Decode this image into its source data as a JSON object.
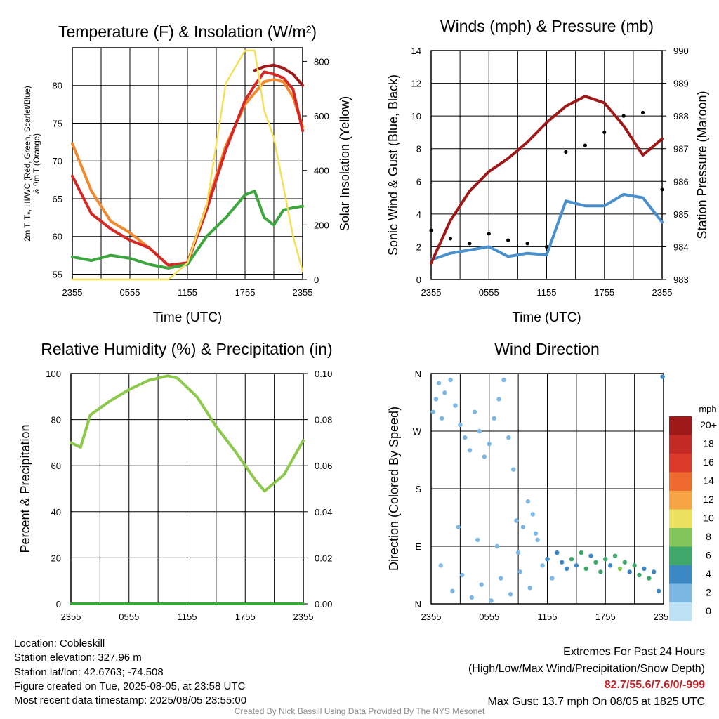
{
  "chart_data": [
    {
      "type": "line",
      "title": "Temperature (F) & Insolation (W/m²)",
      "xlabel": "Time (UTC)",
      "ylabel": "2m T, Td, HI/WC (Red, Green, Scarlet/Blue) & 9m T (Orange)",
      "ylabel_lines": [
        "2m T, Tₙ, HI/WC (Red, Green, Scarlet/Blue)",
        "& 9m T (Orange)"
      ],
      "y2label": "Solar Insolation (Yellow)",
      "x_ticks": [
        "2355",
        "0555",
        "1155",
        "1755",
        "2355"
      ],
      "ylim": [
        54.3,
        85.0
      ],
      "y_ticks": [
        55,
        60,
        65,
        70,
        75,
        80
      ],
      "y2lim": [
        0,
        850
      ],
      "y2_ticks": [
        0,
        200,
        400,
        600,
        800
      ],
      "x_hours": [
        0,
        2,
        4,
        6,
        8,
        10,
        12,
        14,
        16,
        18,
        19,
        20,
        21,
        22,
        23,
        24
      ],
      "series": [
        {
          "color": "#f08a30",
          "axis": "left",
          "values": [
            72.3,
            66,
            62,
            60.5,
            58.5,
            56.2,
            56.5,
            64,
            72,
            77.5,
            79,
            80.5,
            80.8,
            80.5,
            78.5,
            74.5
          ]
        },
        {
          "color": "#d42a25",
          "axis": "left",
          "values": [
            68,
            63,
            61,
            59.5,
            58.5,
            56.2,
            56.5,
            63.5,
            71.5,
            78,
            80,
            81.8,
            81.5,
            81,
            79.5,
            74
          ]
        },
        {
          "color": "#9e1a1a",
          "axis": "left",
          "values": [
            null,
            null,
            null,
            null,
            null,
            null,
            null,
            null,
            null,
            null,
            82,
            82.5,
            82.7,
            82.3,
            81.5,
            80
          ]
        },
        {
          "color": "#3da53d",
          "axis": "left",
          "values": [
            57.3,
            56.8,
            57.5,
            57.1,
            56.3,
            55.8,
            56.3,
            60,
            62.5,
            65.5,
            66,
            62.5,
            61.5,
            63.5,
            63.8,
            64
          ]
        },
        {
          "color": "#f2e05c",
          "axis": "right",
          "values": [
            0,
            0,
            0,
            0,
            0,
            0,
            60,
            270,
            720,
            840,
            840,
            620,
            520,
            340,
            160,
            30
          ]
        }
      ]
    },
    {
      "type": "line",
      "title": "Winds (mph) & Pressure (mb)",
      "xlabel": "Time (UTC)",
      "ylabel": "Sonic Wind & Gust (Blue, Black)",
      "y2label": "Station Pressure (Maroon)",
      "x_ticks": [
        "2355",
        "0555",
        "1155",
        "1755",
        "2355"
      ],
      "ylim": [
        0,
        14
      ],
      "y_ticks": [
        0,
        2,
        4,
        6,
        8,
        10,
        12,
        14
      ],
      "y2lim": [
        983,
        990
      ],
      "y2_ticks": [
        983,
        984,
        985,
        986,
        987,
        988,
        989,
        990
      ],
      "x_hours": [
        0,
        2,
        4,
        6,
        8,
        10,
        12,
        14,
        16,
        18,
        20,
        22,
        24
      ],
      "series": [
        {
          "color": "#4a90cc",
          "axis": "left",
          "values": [
            1.2,
            1.6,
            1.8,
            2.0,
            1.4,
            1.6,
            1.5,
            4.8,
            4.5,
            4.5,
            5.2,
            5.0,
            3.5
          ]
        },
        {
          "color": "#9e1a1a",
          "axis": "right",
          "values": [
            983.5,
            984.8,
            985.7,
            986.3,
            986.7,
            987.2,
            987.8,
            988.3,
            988.6,
            988.4,
            987.7,
            986.8,
            987.3
          ]
        },
        {
          "color": "#000000",
          "axis": "left",
          "style": "dots",
          "values": [
            3.0,
            2.5,
            2.2,
            2.8,
            2.4,
            2.2,
            2.0,
            7.8,
            8.2,
            9.0,
            10.0,
            10.2,
            5.5
          ]
        }
      ]
    },
    {
      "type": "line",
      "title": "Relative Humidity (%) & Precipitation (in)",
      "ylabel": "Percent & Precipitation",
      "x_ticks": [
        "2355",
        "0555",
        "1155",
        "1755",
        "2355"
      ],
      "ylim": [
        0,
        100
      ],
      "y_ticks": [
        0,
        20,
        40,
        60,
        80,
        100
      ],
      "y2lim": [
        0,
        0.1
      ],
      "y2_ticks": [
        "0.00",
        "0.02",
        "0.04",
        "0.06",
        "0.08",
        "0.10"
      ],
      "x_hours": [
        0,
        1,
        2,
        4,
        6,
        8,
        10,
        11,
        13,
        15,
        17,
        19,
        20,
        22,
        24
      ],
      "series": [
        {
          "color": "#8cc84b",
          "axis": "left",
          "values": [
            70,
            68,
            82,
            88,
            93,
            97,
            99,
            98,
            90,
            77,
            66,
            54,
            49,
            56,
            71
          ]
        },
        {
          "color": "#3da53d",
          "axis": "right",
          "values": [
            0,
            0,
            0,
            0,
            0,
            0,
            0,
            0,
            0,
            0,
            0,
            0,
            0,
            0,
            0
          ]
        }
      ]
    },
    {
      "type": "scatter",
      "title": "Wind Direction",
      "ylabel": "Direction (Colored By Speed)",
      "x_ticks": [
        "2355",
        "0555",
        "1155",
        "1755",
        "2355"
      ],
      "y_ticks": [
        "N",
        "E",
        "S",
        "W",
        "N"
      ],
      "y_tick_values": [
        0,
        90,
        180,
        270,
        360
      ],
      "legend_title": "mph",
      "legend_labels": [
        "20+",
        "18",
        "16",
        "14",
        "12",
        "10",
        "8",
        "6",
        "4",
        "2",
        "0"
      ],
      "legend_colors": [
        "#9e1a1a",
        "#c42a26",
        "#dc3a2a",
        "#ef6a2f",
        "#f7a445",
        "#ebe060",
        "#83c55a",
        "#3ea86a",
        "#3b88c4",
        "#7db8e4",
        "#bfe3f5"
      ],
      "points_hours_deg_speed": [
        [
          0.2,
          300,
          1
        ],
        [
          0.5,
          320,
          2
        ],
        [
          0.8,
          345,
          1
        ],
        [
          1.1,
          290,
          2
        ],
        [
          1.4,
          330,
          1
        ],
        [
          2.0,
          350,
          2
        ],
        [
          2.5,
          310,
          1
        ],
        [
          3.0,
          280,
          2
        ],
        [
          3.5,
          260,
          1
        ],
        [
          4.0,
          240,
          2
        ],
        [
          4.5,
          300,
          1
        ],
        [
          5.0,
          270,
          2
        ],
        [
          5.5,
          230,
          1
        ],
        [
          6.0,
          250,
          2
        ],
        [
          6.5,
          290,
          1
        ],
        [
          7.0,
          320,
          2
        ],
        [
          7.5,
          350,
          1
        ],
        [
          8.0,
          260,
          2
        ],
        [
          8.5,
          210,
          1
        ],
        [
          9.0,
          80,
          2
        ],
        [
          9.5,
          120,
          1
        ],
        [
          10.0,
          160,
          2
        ],
        [
          10.5,
          140,
          1
        ],
        [
          11.0,
          100,
          2
        ],
        [
          11.5,
          60,
          2
        ],
        [
          12.0,
          70,
          3
        ],
        [
          12.5,
          40,
          2
        ],
        [
          13.0,
          80,
          4
        ],
        [
          13.5,
          65,
          3
        ],
        [
          14.0,
          55,
          4
        ],
        [
          14.5,
          70,
          5
        ],
        [
          15.0,
          60,
          4
        ],
        [
          15.5,
          80,
          5
        ],
        [
          16.0,
          55,
          6
        ],
        [
          16.5,
          75,
          4
        ],
        [
          17.0,
          65,
          5
        ],
        [
          17.5,
          50,
          6
        ],
        [
          18.0,
          70,
          5
        ],
        [
          18.5,
          60,
          4
        ],
        [
          19.0,
          75,
          6
        ],
        [
          19.5,
          55,
          7
        ],
        [
          20.0,
          65,
          5
        ],
        [
          20.5,
          50,
          4
        ],
        [
          21.0,
          60,
          6
        ],
        [
          21.5,
          45,
          5
        ],
        [
          22.0,
          55,
          4
        ],
        [
          22.5,
          40,
          5
        ],
        [
          23.0,
          50,
          4
        ],
        [
          23.5,
          20,
          3
        ],
        [
          23.9,
          355,
          3
        ],
        [
          1.0,
          60,
          2
        ],
        [
          2.2,
          20,
          1
        ],
        [
          3.2,
          45,
          2
        ],
        [
          4.2,
          10,
          1
        ],
        [
          5.2,
          30,
          2
        ],
        [
          6.2,
          5,
          1
        ],
        [
          7.2,
          40,
          2
        ],
        [
          8.2,
          15,
          1
        ],
        [
          9.2,
          50,
          2
        ],
        [
          10.2,
          25,
          1
        ],
        [
          2.8,
          120,
          1
        ],
        [
          4.8,
          100,
          2
        ],
        [
          6.8,
          90,
          1
        ],
        [
          8.8,
          130,
          2
        ],
        [
          10.8,
          110,
          1
        ]
      ]
    }
  ],
  "footer": {
    "location": "Location: Cobleskill",
    "elevation": "Station elevation: 327.96 m",
    "latlon": "Station lat/lon: 42.6763; -74.508",
    "created": "Figure created on Tue, 2025-08-05, at 23:58 UTC",
    "recent": "Most recent data timestamp: 2025/08/05 23:55:00",
    "extremes_title": "Extremes For Past 24 Hours",
    "extremes_desc": "(High/Low/Max Wind/Precipitation/Snow Depth)",
    "extremes_values": "82.7/55.6/7.6/0/-999",
    "max_gust": "Max Gust: 13.7 mph On 08/05 at 1825 UTC",
    "credit": "Created By Nick Bassill Using Data Provided By The NYS Mesonet"
  }
}
